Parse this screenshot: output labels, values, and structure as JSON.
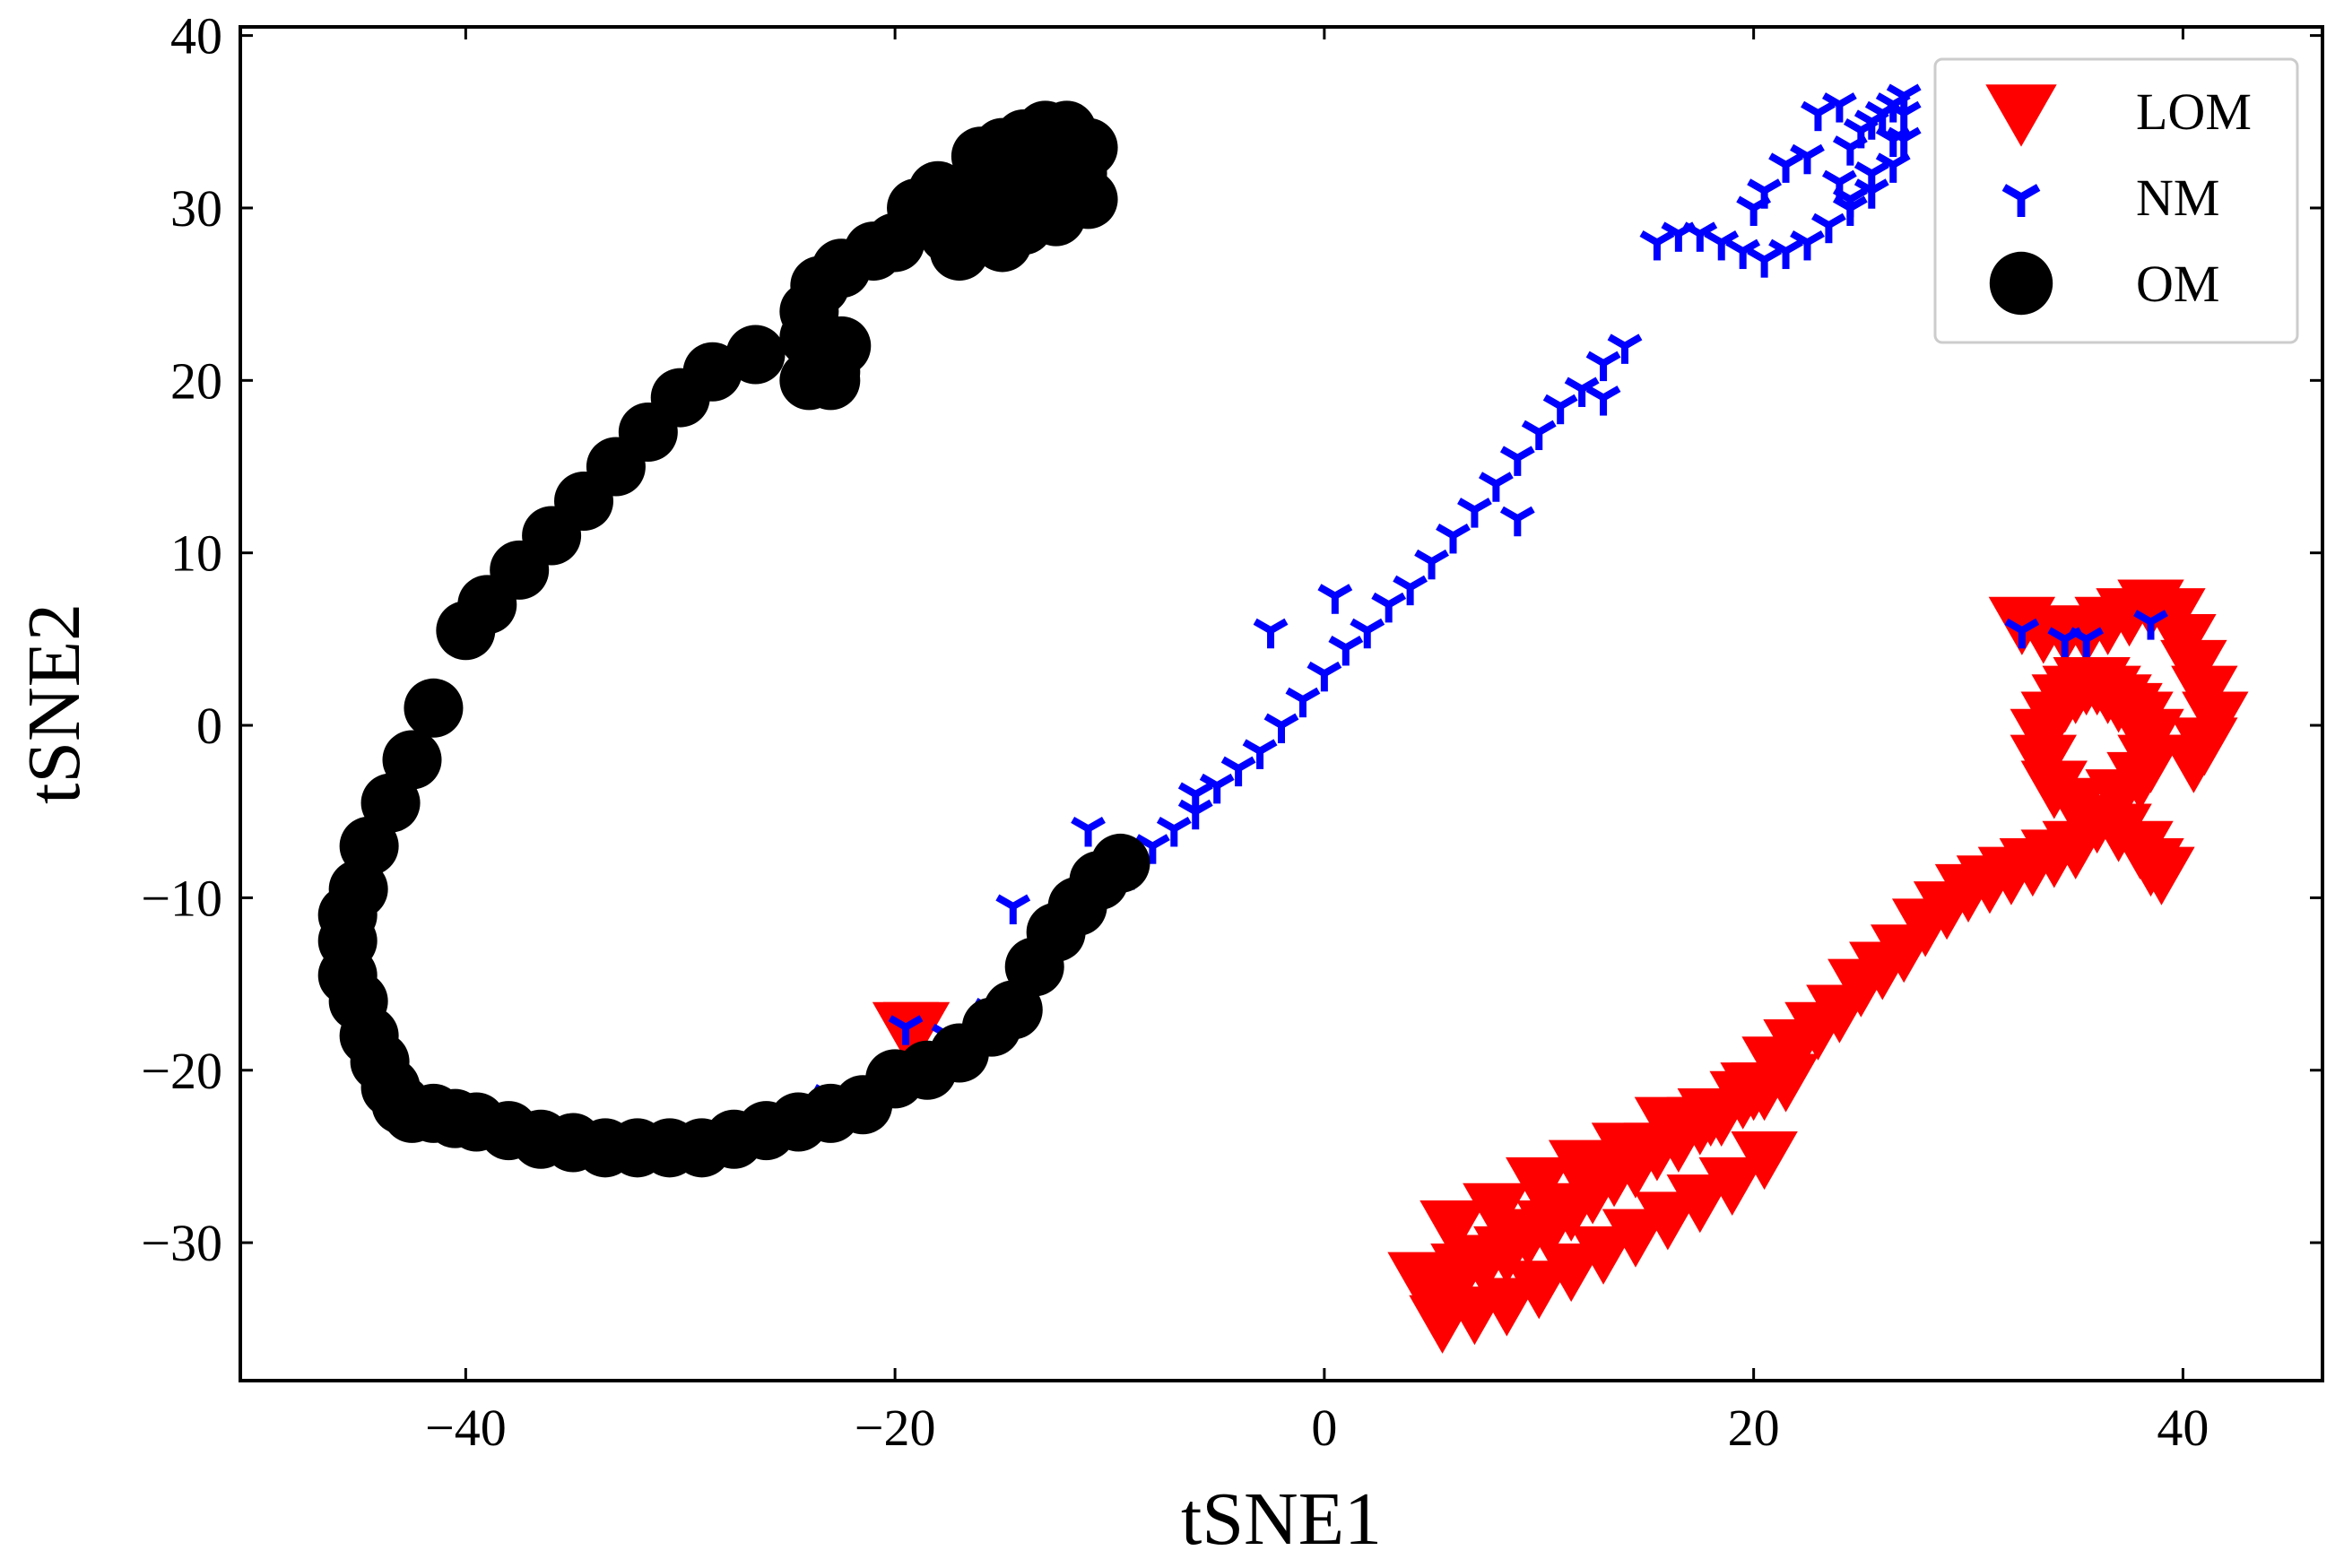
{
  "chart_data": {
    "type": "scatter",
    "title": "",
    "xlabel": "tSNE1",
    "ylabel": "tSNE2",
    "xlim": [
      -50.5,
      46.5
    ],
    "ylim": [
      -38,
      40.5
    ],
    "xticks": [
      -40,
      -20,
      0,
      20,
      40
    ],
    "yticks": [
      -30,
      -20,
      -10,
      0,
      10,
      20,
      30,
      40
    ],
    "xtick_labels": [
      "−40",
      "−20",
      "0",
      "20",
      "40"
    ],
    "ytick_labels": [
      "−30",
      "−20",
      "−10",
      "0",
      "10",
      "20",
      "30",
      "40"
    ],
    "tick_direction": "in",
    "grid": false,
    "legend_position": "top-right",
    "colors": {
      "LOM": "#ff0000",
      "NM": "#0000ff",
      "OM": "#000000"
    },
    "series": [
      {
        "name": "LOM",
        "marker": "triangle-down",
        "color": "#ff0000",
        "x": [
          4.5,
          5.5,
          6.5,
          7.5,
          8.5,
          9.5,
          10.5,
          11.5,
          12.5,
          13.5,
          14.5,
          15.5,
          16.5,
          17.5,
          18.5,
          19.5,
          20.5,
          21.5,
          5.5,
          7.0,
          8.5,
          10.0,
          11.5,
          13.0,
          14.5,
          16.0,
          17.5,
          19.0,
          20.5,
          6.0,
          8.0,
          10.0,
          12.0,
          14.0,
          16.0,
          18.0,
          20.0,
          21.0,
          22.0,
          23.0,
          24.0,
          25.0,
          26.0,
          27.0,
          28.0,
          29.0,
          30.0,
          31.0,
          32.0,
          33.0,
          34.0,
          35.0,
          36.0,
          37.0,
          38.0,
          38.5,
          38.5,
          38.0,
          37.5,
          37.0,
          36.5,
          36.0,
          35.5,
          35.0,
          34.5,
          34.0,
          33.5,
          33.5,
          34.0,
          35.0,
          36.0,
          37.0,
          38.0,
          38.5,
          39.0,
          32.5,
          33.5,
          34.5,
          35.5,
          36.5,
          37.5,
          38.5,
          39.5,
          40.0,
          40.5,
          41.0,
          41.5,
          41.0,
          40.5,
          -19.5,
          -19.0
        ],
        "y": [
          -32,
          -32.5,
          -31.5,
          -31.0,
          -30.5,
          -29.5,
          -29.0,
          -28.0,
          -27.0,
          -26.0,
          -25.5,
          -24.5,
          -24.0,
          -23.0,
          -22.5,
          -21.5,
          -21.0,
          -20.5,
          -34.5,
          -34.0,
          -33.5,
          -32.5,
          -31.5,
          -30.5,
          -29.5,
          -28.5,
          -27.5,
          -26.5,
          -25.0,
          -29.0,
          -28.0,
          -26.5,
          -25.5,
          -24.5,
          -23.0,
          -22.5,
          -21.0,
          -19.5,
          -18.5,
          -17.5,
          -16.5,
          -15.0,
          -14.0,
          -13.0,
          -11.5,
          -10.5,
          -9.5,
          -9.0,
          -8.5,
          -8.0,
          -7.5,
          -7.0,
          -5.5,
          -4.0,
          -3.0,
          -2.0,
          -0.5,
          0.5,
          1.0,
          1.5,
          2.0,
          2.5,
          2.5,
          2.0,
          1.5,
          0.5,
          -0.5,
          -2.0,
          -3.5,
          -4.5,
          -5.5,
          -6.0,
          -7.0,
          -8.0,
          -8.5,
          6.0,
          5.5,
          5.5,
          5.5,
          6.0,
          6.5,
          7.0,
          6.5,
          5.0,
          3.5,
          2.0,
          0.5,
          -1.0,
          -2.0,
          -17.5,
          -17.5
        ]
      },
      {
        "name": "NM",
        "marker": "tri-down",
        "color": "#0000ff",
        "x": [
          15.5,
          16.5,
          17.5,
          18.5,
          19.5,
          20.5,
          21.5,
          22.5,
          23.5,
          24.5,
          25.5,
          26.5,
          27.0,
          27.0,
          26.5,
          26.0,
          25.5,
          25.0,
          24.5,
          24.0,
          24.5,
          25.5,
          26.5,
          27.0,
          24.0,
          23.0,
          22.5,
          21.5,
          20.5,
          20.0,
          14.0,
          13.0,
          12.0,
          11.0,
          10.0,
          9.0,
          8.0,
          7.0,
          6.0,
          5.0,
          4.0,
          3.0,
          2.0,
          1.0,
          0.0,
          -1.0,
          -2.0,
          -3.0,
          -4.0,
          -5.0,
          -6.0,
          -7.0,
          -8.0,
          -9.0,
          13.0,
          9.0,
          0.5,
          -2.5,
          -6.0,
          -11.0,
          -14.5,
          -19.5,
          -17.5,
          -15.5,
          -23.0,
          -24.0,
          32.5,
          34.5,
          35.5,
          38.5
        ],
        "y": [
          28,
          28.5,
          28.5,
          28.0,
          27.5,
          27.0,
          27.5,
          28.0,
          29.0,
          30.5,
          32.0,
          34.0,
          35.5,
          36.5,
          36.0,
          35.5,
          35.0,
          34.5,
          33.5,
          31.5,
          30.0,
          31.0,
          32.5,
          34.0,
          36.0,
          35.5,
          33.0,
          32.5,
          31.0,
          30.0,
          22.0,
          21.0,
          19.5,
          18.5,
          17.0,
          15.5,
          14.0,
          12.5,
          11.0,
          9.5,
          8.0,
          7.0,
          5.5,
          4.5,
          3.0,
          1.5,
          0.0,
          -1.5,
          -2.5,
          -3.5,
          -5.0,
          -6.0,
          -7.0,
          -8.5,
          19.0,
          12.0,
          7.5,
          5.5,
          -4.0,
          -6.0,
          -10.5,
          -17.5,
          -18.0,
          -16.5,
          -21.5,
          -22.0,
          5.5,
          5.0,
          5.0,
          6.0
        ]
      },
      {
        "name": "OM",
        "marker": "circle",
        "color": "#000000",
        "x": [
          -16.0,
          -15.0,
          -14.0,
          -13.0,
          -12.0,
          -11.0,
          -16.5,
          -15.5,
          -14.5,
          -13.5,
          -12.5,
          -11.5,
          -17.0,
          -16.0,
          -15.0,
          -14.0,
          -13.0,
          -12.0,
          -11.0,
          -18.0,
          -17.5,
          -19.0,
          -15.0,
          -14.0,
          -12.5,
          -17.0,
          -20.0,
          -21.0,
          -22.5,
          -23.5,
          -24.0,
          -24.0,
          -23.5,
          -23.0,
          -22.5,
          -23.0,
          -24.0,
          -26.5,
          -28.5,
          -30.0,
          -31.5,
          -33.0,
          -34.5,
          -36.0,
          -37.5,
          -39.0,
          -40.0,
          -41.5,
          -42.5,
          -43.5,
          -44.5,
          -45.0,
          -45.5,
          -45.5,
          -45.5,
          -45.0,
          -44.5,
          -44.0,
          -43.5,
          -43.0,
          -42.5,
          -41.5,
          -40.5,
          -39.5,
          -38.0,
          -36.5,
          -35.0,
          -33.5,
          -32.0,
          -30.5,
          -29.0,
          -27.5,
          -26.0,
          -24.5,
          -23.0,
          -21.5,
          -20.0,
          -18.5,
          -17.0,
          -15.5,
          -14.5,
          -13.5,
          -12.5,
          -11.5,
          -10.5,
          -9.5
        ],
        "y": [
          33.0,
          33.5,
          34.0,
          34.5,
          34.5,
          33.5,
          31.0,
          31.5,
          32.0,
          32.5,
          33.0,
          32.0,
          29.0,
          29.5,
          30.0,
          30.5,
          31.0,
          31.0,
          30.5,
          31.0,
          28.5,
          30.0,
          28.0,
          29.0,
          29.5,
          27.5,
          28.0,
          27.5,
          26.5,
          25.5,
          24.0,
          22.5,
          21.0,
          20.5,
          22.0,
          20.0,
          20.0,
          21.5,
          20.5,
          19.0,
          17.0,
          15.0,
          13.0,
          11.0,
          9.0,
          7.0,
          5.5,
          1.0,
          -2.0,
          -4.5,
          -7.0,
          -9.5,
          -11.0,
          -12.5,
          -14.5,
          -16.0,
          -18.0,
          -19.5,
          -21.0,
          -22.0,
          -22.5,
          -22.5,
          -22.8,
          -23.0,
          -23.5,
          -24.0,
          -24.2,
          -24.5,
          -24.5,
          -24.5,
          -24.5,
          -24.0,
          -23.5,
          -23.0,
          -22.5,
          -22.0,
          -20.5,
          -20.0,
          -19.0,
          -17.5,
          -16.5,
          -14.0,
          -12.0,
          -10.5,
          -9.0,
          -8.0
        ]
      }
    ]
  }
}
